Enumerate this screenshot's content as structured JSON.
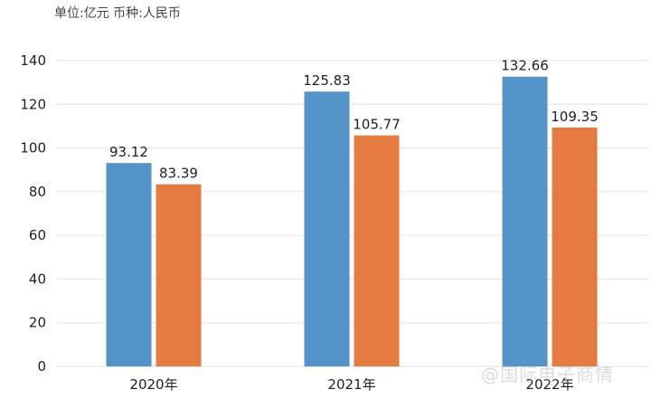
{
  "unit_note": "单位:亿元 币种:人民币",
  "watermark": "@国际电子商情",
  "colors": {
    "series_a": "#5494c9",
    "series_b": "#e57b40"
  },
  "chart_data": {
    "type": "bar",
    "categories": [
      "2020年",
      "2021年",
      "2022年"
    ],
    "series": [
      {
        "values": [
          93.12,
          125.83,
          132.66
        ]
      },
      {
        "values": [
          83.39,
          105.77,
          109.35
        ]
      }
    ],
    "ylim": [
      0,
      140
    ],
    "yticks": [
      0,
      20,
      40,
      60,
      80,
      100,
      120,
      140
    ],
    "grid": true,
    "value_labels": [
      [
        "93.12",
        "125.83",
        "132.66"
      ],
      [
        "83.39",
        "105.77",
        "109.35"
      ]
    ]
  }
}
